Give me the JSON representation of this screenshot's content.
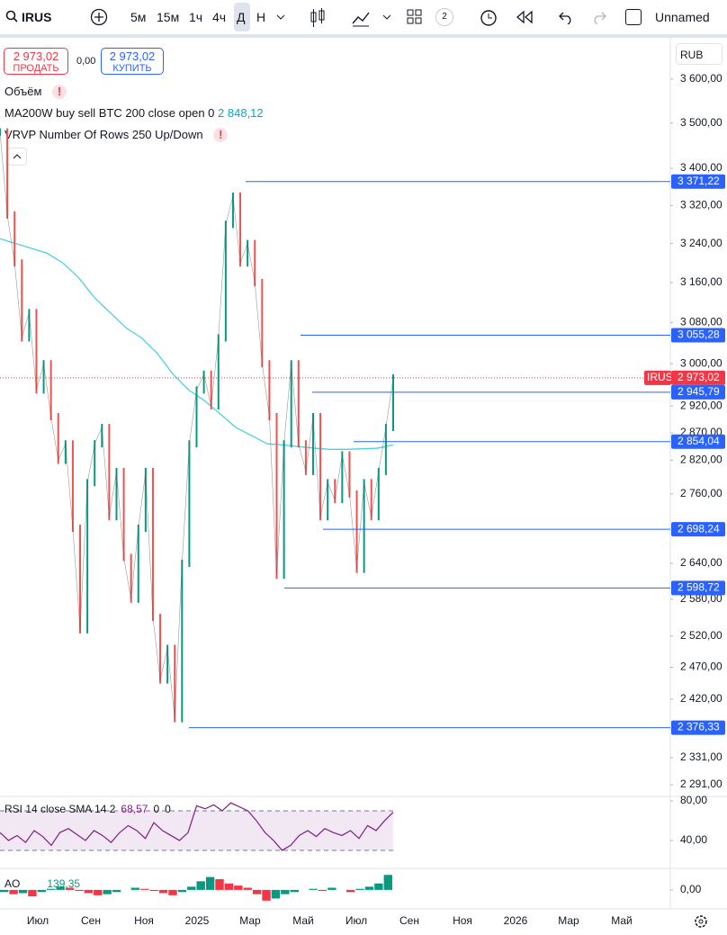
{
  "toolbar": {
    "symbol": "IRUS",
    "intervals": [
      "5м",
      "15м",
      "1ч",
      "4ч",
      "Д",
      "Н"
    ],
    "badge": "2",
    "layout_name": "Unnamed"
  },
  "trade": {
    "sell_price": "2 973,02",
    "sell_label": "ПРОДАТЬ",
    "spread": "0,00",
    "buy_price": "2 973,02",
    "buy_label": "КУПИТЬ"
  },
  "currency": "RUB",
  "legend": {
    "volume": "Объём",
    "ma_label": "MA200W buy sell BTC 200 close open 0",
    "ma_value": "2 848,12",
    "vrvp": "VRVP Number Of Rows 250 Up/Down"
  },
  "chart": {
    "log_scale": true,
    "ylim": [
      2270,
      3690
    ],
    "yticks": [
      {
        "value": 3600,
        "label": "3 600,00"
      },
      {
        "value": 3500,
        "label": "3 500,00"
      },
      {
        "value": 3400,
        "label": "3 400,00"
      },
      {
        "value": 3320,
        "label": "3 320,00"
      },
      {
        "value": 3240,
        "label": "3 240,00"
      },
      {
        "value": 3160,
        "label": "3 160,00"
      },
      {
        "value": 3080,
        "label": "3 080,00"
      },
      {
        "value": 3000,
        "label": "3 000,00"
      },
      {
        "value": 2920,
        "label": "2 920,00"
      },
      {
        "value": 2870,
        "label": "2 870,00"
      },
      {
        "value": 2820,
        "label": "2 820,00"
      },
      {
        "value": 2760,
        "label": "2 760,00"
      },
      {
        "value": 2640,
        "label": "2 640,00"
      },
      {
        "value": 2580,
        "label": "2 580,00"
      },
      {
        "value": 2520,
        "label": "2 520,00"
      },
      {
        "value": 2470,
        "label": "2 470,00"
      },
      {
        "value": 2420,
        "label": "2 420,00"
      },
      {
        "value": 2331,
        "label": "2 331,00"
      },
      {
        "value": 2291,
        "label": "2 291,00"
      }
    ],
    "price": {
      "name": "IRUS",
      "color": "#ef5350",
      "values": [
        3480,
        3300,
        3200,
        3050,
        3100,
        2950,
        3000,
        2900,
        2820,
        2850,
        2700,
        2530,
        2780,
        2850,
        2880,
        2720,
        2800,
        2650,
        2580,
        2700,
        2800,
        2550,
        2450,
        2500,
        2390,
        2640,
        2850,
        2950,
        2980,
        2920,
        3050,
        3280,
        3340,
        3200,
        3240,
        3160,
        3000,
        2900,
        2620,
        2850,
        3000,
        2850,
        2800,
        2900,
        2720,
        2780,
        2750,
        2830,
        2760,
        2630,
        2780,
        2720,
        2800,
        2880,
        2973.02
      ]
    },
    "ma": {
      "color": "#4dd0e1",
      "values": [
        3250,
        3240,
        3230,
        3220,
        3200,
        3170,
        3130,
        3100,
        3070,
        3050,
        3020,
        2980,
        2950,
        2930,
        2905,
        2880,
        2865,
        2850,
        2848,
        2845,
        2842,
        2840,
        2840,
        2841,
        2842,
        2848.12
      ]
    },
    "current": {
      "name": "IRUS",
      "value": 2973.02,
      "label": "2 973,02",
      "color": "#f23645"
    },
    "levels": [
      {
        "value": 3371.22,
        "label": "3 371,22"
      },
      {
        "value": 3055.28,
        "label": "3 055,28"
      },
      {
        "value": 2945.79,
        "label": "2 945,79"
      },
      {
        "value": 2854.04,
        "label": "2 854,04"
      },
      {
        "value": 2698.24,
        "label": "2 698,24"
      },
      {
        "value": 2598.72,
        "label": "2 598,72"
      },
      {
        "value": 2376.33,
        "label": "2 376,33"
      }
    ],
    "level_color": "#2962ff"
  },
  "rsi": {
    "legend": "RSI 14 close SMA 14 2",
    "value": "68,57",
    "v2": "0",
    "v3": "0",
    "color": "#7e1f86",
    "ylim": [
      14.5,
      84.5
    ],
    "yticks": [
      {
        "value": 80,
        "label": "80,00"
      },
      {
        "value": 40,
        "label": "40,00"
      }
    ],
    "band": [
      30,
      70
    ],
    "values": [
      48,
      40,
      45,
      38,
      50,
      44,
      35,
      48,
      52,
      46,
      40,
      50,
      45,
      38,
      48,
      55,
      50,
      42,
      58,
      50,
      45,
      40,
      48,
      75,
      72,
      76,
      70,
      78,
      74,
      70,
      60,
      48,
      40,
      30,
      35,
      45,
      50,
      44,
      52,
      48,
      45,
      50,
      42,
      55,
      50,
      60,
      68.57
    ]
  },
  "ao": {
    "legend": "AO",
    "value": "139,35",
    "ylim": [
      -160,
      200
    ],
    "yticks": [
      {
        "value": 0,
        "label": "0,00"
      }
    ],
    "values": [
      -20,
      -40,
      -30,
      -60,
      -20,
      10,
      30,
      20,
      -10,
      -30,
      -50,
      -40,
      -20,
      0,
      20,
      10,
      -10,
      -30,
      -50,
      -20,
      30,
      80,
      120,
      100,
      60,
      40,
      20,
      -40,
      -100,
      -80,
      -40,
      -20,
      0,
      10,
      -10,
      20,
      0,
      -20,
      10,
      30,
      60,
      139.35
    ]
  },
  "time_axis": [
    "Июл",
    "Сен",
    "Ноя",
    "2025",
    "Мар",
    "Май",
    "Июл",
    "Сен",
    "Ноя",
    "2026",
    "Мар",
    "Май"
  ]
}
